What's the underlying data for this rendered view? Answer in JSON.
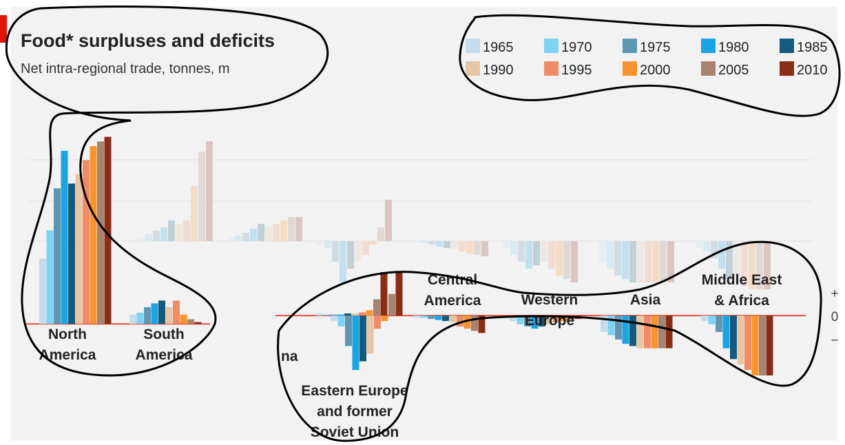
{
  "colors": {
    "background": "#f2f2f2",
    "accent_red": "#e3120b",
    "zero_line": "#e05040",
    "grid": "#d0d0d0",
    "text": "#222222",
    "outline": "#000000"
  },
  "chart_data": {
    "type": "bar",
    "title": "Food* surpluses and deficits",
    "subtitle": "Net intra-regional trade, tonnes, m",
    "legend_position": "top-right",
    "grid": true,
    "series": [
      {
        "name": "1965",
        "color": "#c5dcec"
      },
      {
        "name": "1970",
        "color": "#7fd2f4"
      },
      {
        "name": "1975",
        "color": "#5f97b2"
      },
      {
        "name": "1980",
        "color": "#1ba4e2"
      },
      {
        "name": "1985",
        "color": "#155a7c"
      },
      {
        "name": "1990",
        "color": "#e7c6a6"
      },
      {
        "name": "1995",
        "color": "#ef8c68"
      },
      {
        "name": "2000",
        "color": "#f7942e"
      },
      {
        "name": "2005",
        "color": "#a68470"
      },
      {
        "name": "2010",
        "color": "#8a2d17"
      }
    ],
    "panels": [
      {
        "name": "sharp-left",
        "ylim": [
          -55,
          210
        ],
        "categories": [
          {
            "label": [
              "North",
              "America"
            ],
            "values": [
              70,
              100,
              145,
              185,
              150,
              160,
              175,
              190,
              195,
              200
            ]
          },
          {
            "label": [
              "South",
              "America"
            ],
            "values": [
              10,
              12,
              18,
              22,
              25,
              18,
              25,
              10,
              5,
              2
            ]
          }
        ]
      },
      {
        "name": "sharp-bottom",
        "ylim": [
          -55,
          40
        ],
        "categories": [
          {
            "label": [
              "",
              "na"
            ],
            "values": [
              2,
              1,
              1,
              1,
              2,
              2,
              3,
              5,
              15,
              40
            ]
          },
          {
            "label": [
              "Eastern Europe",
              "and former",
              "Soviet Union"
            ],
            "values": [
              -5,
              -10,
              -28,
              -50,
              -42,
              -35,
              -12,
              -5,
              20,
              40
            ]
          },
          {
            "label": [
              "Central",
              "America"
            ],
            "values": [
              -2,
              -2,
              -3,
              -4,
              -5,
              -6,
              -10,
              -12,
              -14,
              -16
            ]
          },
          {
            "label": [
              "Western",
              "Europe"
            ],
            "values": [
              -5,
              -8,
              -10,
              -12,
              -10,
              -8,
              -6,
              -5,
              -4,
              -3
            ]
          },
          {
            "label": [
              "Asia"
            ],
            "values": [
              -15,
              -18,
              -22,
              -26,
              -28,
              -30,
              -30,
              -30,
              -30,
              -30
            ]
          },
          {
            "label": [
              "Middle East",
              "& Africa"
            ],
            "values": [
              -5,
              -8,
              -15,
              -30,
              -40,
              -45,
              -50,
              -55,
              -55,
              -55
            ]
          }
        ]
      }
    ],
    "axis_ticks": [
      "+",
      "0",
      "−"
    ]
  }
}
